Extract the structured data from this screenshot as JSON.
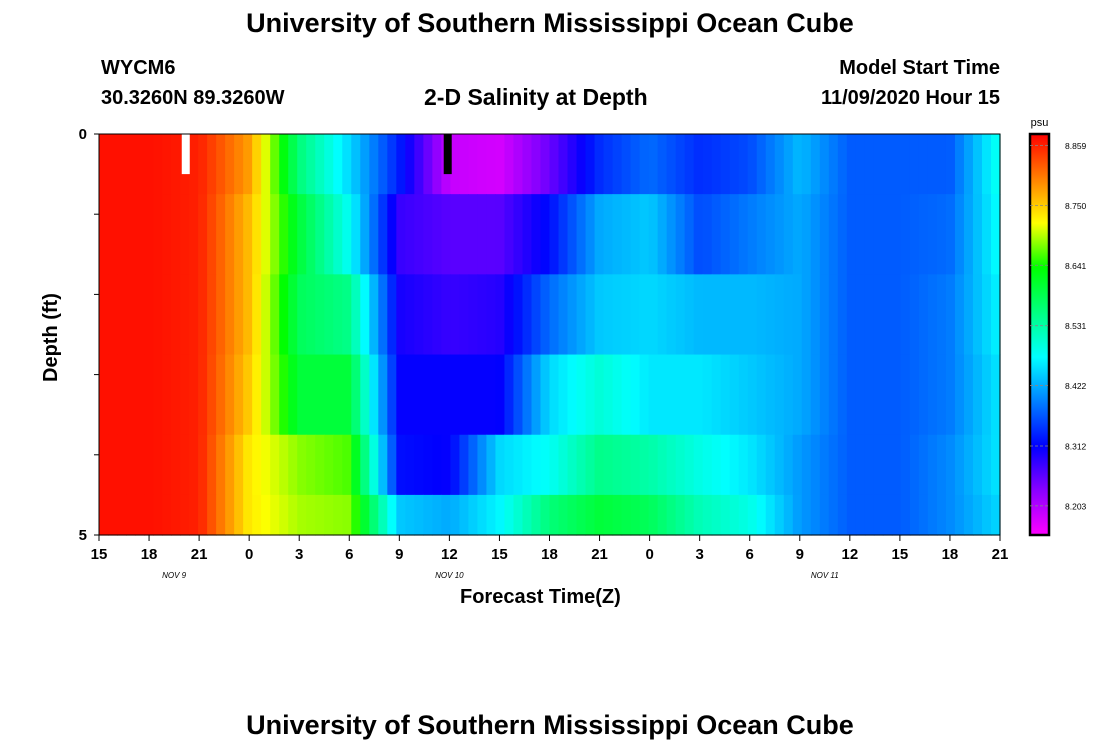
{
  "header": {
    "title": "University of Southern Mississippi Ocean Cube",
    "station": "WYCM6",
    "coords": "30.3260N 89.3260W",
    "plot_title": "2-D Salinity at Depth",
    "model_start_label": "Model Start Time",
    "model_start_value": "11/09/2020 Hour 15"
  },
  "footer": {
    "title": "University of Southern Mississippi Ocean Cube"
  },
  "chart_data": {
    "type": "heatmap",
    "title": "2-D Salinity at Depth",
    "xlabel": "Forecast Time(Z)",
    "ylabel": "Depth (ft)",
    "x_tick_labels": [
      "15",
      "18",
      "21",
      "0",
      "3",
      "6",
      "9",
      "12",
      "15",
      "18",
      "21",
      "0",
      "3",
      "6",
      "9",
      "12",
      "15",
      "18",
      "21"
    ],
    "x_day_labels": [
      {
        "label": "NOV  9",
        "tick_index": 1.5
      },
      {
        "label": "NOV  10",
        "tick_index": 7
      },
      {
        "label": "NOV  11",
        "tick_index": 14.5
      }
    ],
    "y_tick_labels": [
      "0",
      "5"
    ],
    "ylim": [
      0,
      5
    ],
    "colorbar": {
      "unit": "psu",
      "min": 8.15,
      "max": 8.88,
      "tick_labels": [
        "8.859",
        "8.750",
        "8.641",
        "8.531",
        "8.422",
        "8.312",
        "8.203"
      ],
      "tick_values": [
        8.859,
        8.75,
        8.641,
        8.531,
        8.422,
        8.312,
        8.203
      ],
      "colormap": [
        "#ff00ff",
        "#8a00ff",
        "#0000ff",
        "#0080ff",
        "#00ffff",
        "#00ff80",
        "#00ff00",
        "#ffff00",
        "#ff8000",
        "#ff0000"
      ]
    },
    "x_hours": [
      0,
      3,
      6,
      9,
      12,
      15,
      18,
      21,
      24,
      27,
      30,
      33,
      36,
      39,
      42,
      45,
      48,
      51,
      54
    ],
    "layer_depths": [
      0.25,
      1.25,
      2.25,
      3.25,
      4.25,
      4.75
    ],
    "salinity_rows": [
      [
        8.87,
        8.87,
        8.86,
        8.78,
        8.56,
        8.45,
        8.33,
        8.19,
        8.18,
        8.25,
        8.34,
        8.38,
        8.34,
        8.36,
        8.43,
        8.37,
        8.37,
        8.37,
        8.49
      ],
      [
        8.87,
        8.87,
        8.86,
        8.76,
        8.6,
        8.48,
        8.28,
        8.26,
        8.26,
        8.32,
        8.42,
        8.44,
        8.36,
        8.39,
        8.42,
        8.37,
        8.37,
        8.38,
        8.48
      ],
      [
        8.87,
        8.87,
        8.86,
        8.76,
        8.58,
        8.55,
        8.3,
        8.28,
        8.29,
        8.38,
        8.44,
        8.45,
        8.43,
        8.43,
        8.42,
        8.37,
        8.37,
        8.39,
        8.47
      ],
      [
        8.87,
        8.87,
        8.86,
        8.75,
        8.6,
        8.6,
        8.31,
        8.31,
        8.31,
        8.45,
        8.5,
        8.46,
        8.46,
        8.44,
        8.42,
        8.37,
        8.37,
        8.39,
        8.46
      ],
      [
        8.87,
        8.87,
        8.86,
        8.73,
        8.68,
        8.66,
        8.32,
        8.31,
        8.45,
        8.48,
        8.55,
        8.53,
        8.49,
        8.46,
        8.41,
        8.37,
        8.37,
        8.4,
        8.46
      ],
      [
        8.87,
        8.87,
        8.86,
        8.73,
        8.69,
        8.68,
        8.44,
        8.42,
        8.47,
        8.56,
        8.6,
        8.58,
        8.52,
        8.49,
        8.41,
        8.37,
        8.37,
        8.4,
        8.45
      ]
    ],
    "markers": [
      {
        "hour": 5.2,
        "color": "#ffffff"
      },
      {
        "hour": 20.9,
        "color": "#000000"
      }
    ],
    "grid": false,
    "legend_placement": "right"
  }
}
